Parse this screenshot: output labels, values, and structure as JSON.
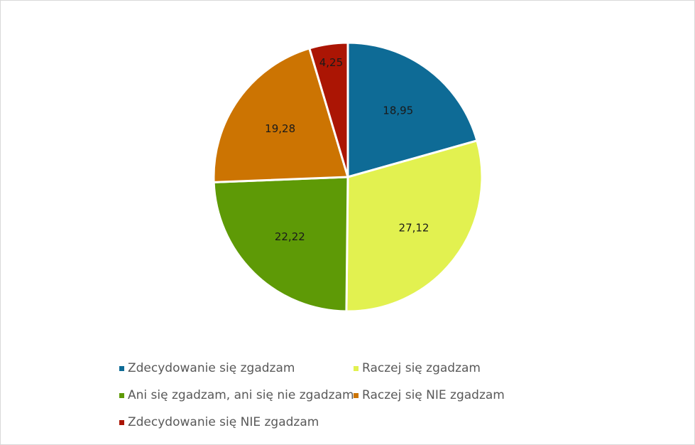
{
  "chart_data": {
    "type": "pie",
    "title": "",
    "categories": [
      "Zdecydowanie się zgadzam",
      "Raczej się zgadzam",
      "Ani się zgadzam, ani się nie zgadzam",
      "Raczej się NIE zgadzam",
      "Zdecydowanie się NIE zgadzam"
    ],
    "values": [
      18.95,
      27.12,
      22.22,
      19.28,
      4.25
    ],
    "value_labels": [
      "18,95",
      "27,12",
      "22,22",
      "19,28",
      "4,25"
    ],
    "colors": [
      "#0e6b96",
      "#e2f150",
      "#5e9a06",
      "#cc7402",
      "#ab1504"
    ],
    "legend_position": "bottom"
  }
}
